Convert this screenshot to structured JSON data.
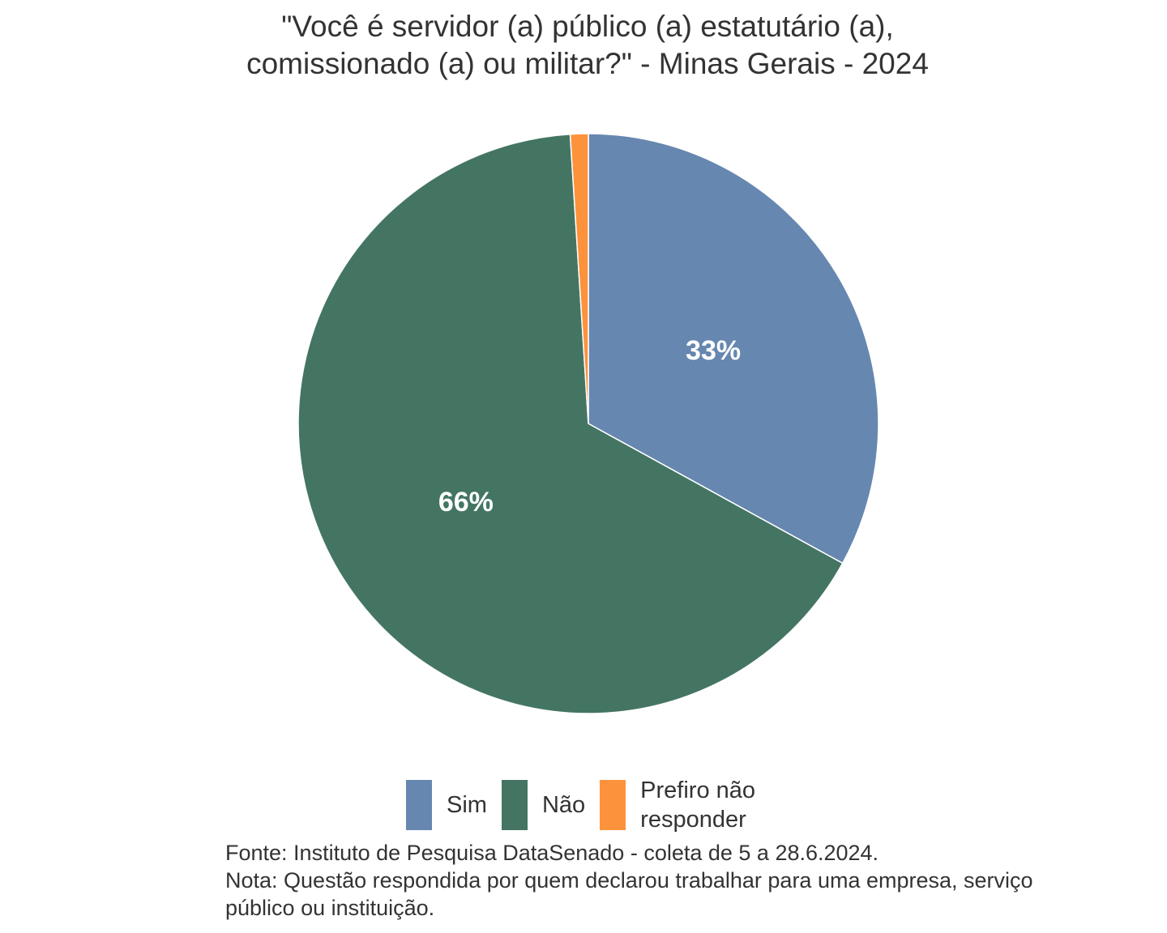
{
  "chart_data": {
    "type": "pie",
    "title_lines": [
      "\"Você é servidor (a) público (a) estatutário (a),",
      "comissionado (a) ou militar?\" - Minas Gerais - 2024"
    ],
    "slices": [
      {
        "label": "Sim",
        "value": 33,
        "data_label": "33%",
        "color": "#6687b0"
      },
      {
        "label": "Não",
        "value": 66,
        "data_label": "66%",
        "color": "#447563"
      },
      {
        "label": "Prefiro não responder",
        "value": 1,
        "data_label": "",
        "color": "#fd923c"
      }
    ],
    "legend": {
      "placement": "bottom",
      "items": [
        "Sim",
        "Não",
        "Prefiro não",
        "responder"
      ]
    },
    "caption_lines": [
      "Fonte: Instituto de Pesquisa DataSenado - coleta de 5 a 28.6.2024.",
      "Nota: Questão respondida por quem declarou trabalhar para uma empresa, serviço",
      "público ou instituição."
    ]
  }
}
